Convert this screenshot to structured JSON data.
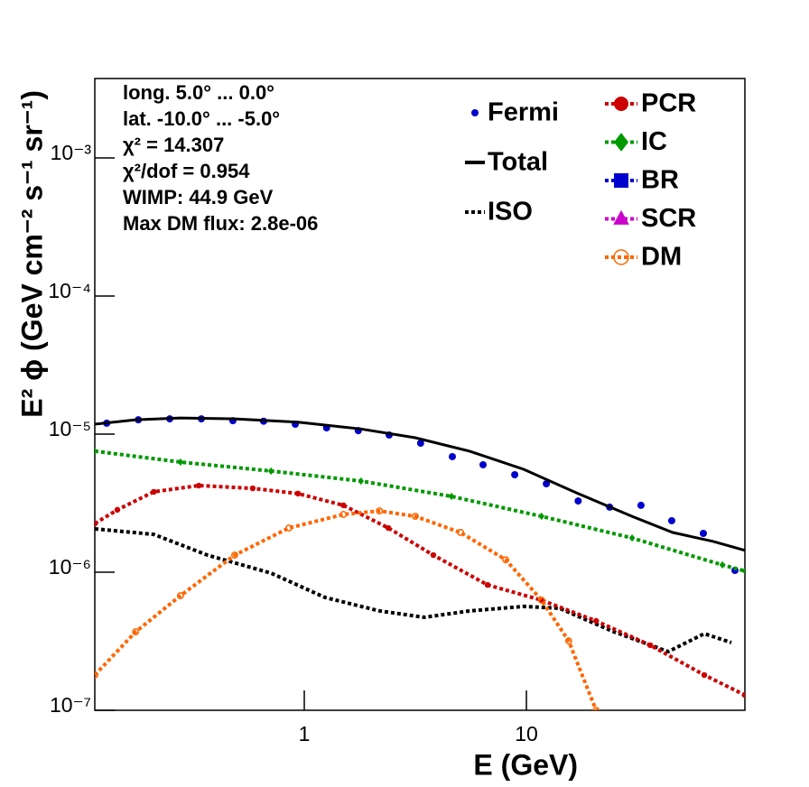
{
  "chart_data": {
    "type": "line",
    "xlabel": "E (GeV)",
    "ylabel": "E² ϕ (GeV cm⁻² s⁻¹ sr⁻¹)",
    "annotations": [
      "long. 5.0° ... 0.0°",
      "lat. -10.0° ... -5.0°",
      "χ² = 14.307",
      "χ²/dof = 0.954",
      "WIMP: 44.9 GeV",
      "Max DM flux: 2.8e-06"
    ],
    "xlog": true,
    "ylog": true,
    "xlim": [
      0.114,
      96.3
    ],
    "ylim": [
      1e-07,
      0.00376
    ],
    "xticks": [
      1,
      10
    ],
    "yticks": [
      {
        "value": 1e-07,
        "label": "10⁻⁷"
      },
      {
        "value": 1e-06,
        "label": "10⁻⁶"
      },
      {
        "value": 1e-05,
        "label": "10⁻⁵"
      },
      {
        "value": 0.0001,
        "label": "10⁻⁴"
      },
      {
        "value": 0.001,
        "label": "10⁻³"
      }
    ],
    "series": [
      {
        "name": "Fermi",
        "color": "#0000cc",
        "style": "points",
        "marker": "circle",
        "x": [
          0.129,
          0.179,
          0.248,
          0.344,
          0.477,
          0.656,
          0.911,
          1.26,
          1.75,
          2.41,
          3.34,
          4.64,
          6.38,
          8.86,
          12.3,
          17.1,
          23.7,
          32.8,
          45.1,
          62.6,
          86.9
        ],
        "values": [
          1.2e-05,
          1.27e-05,
          1.29e-05,
          1.29e-05,
          1.25e-05,
          1.24e-05,
          1.18e-05,
          1.11e-05,
          1.06e-05,
          9.85e-06,
          8.6e-06,
          6.87e-06,
          6e-06,
          5.08e-06,
          4.37e-06,
          3.28e-06,
          2.96e-06,
          3.05e-06,
          2.36e-06,
          1.91e-06,
          1.03e-06
        ]
      },
      {
        "name": "Total",
        "color": "#000000",
        "style": "solid",
        "marker": "none",
        "x": [
          0.114,
          0.174,
          0.277,
          0.486,
          0.937,
          1.8,
          3.16,
          5.55,
          9.72,
          17.1,
          29.9,
          45.6,
          69.4,
          96.3
        ],
        "values": [
          1.18e-05,
          1.27e-05,
          1.31e-05,
          1.29e-05,
          1.22e-05,
          1.09e-05,
          9.42e-06,
          7.52e-06,
          5.56e-06,
          3.71e-06,
          2.54e-06,
          1.94e-06,
          1.67e-06,
          1.44e-06
        ]
      },
      {
        "name": "ISO",
        "color": "#000000",
        "style": "dotted",
        "marker": "none",
        "x": [
          0.114,
          0.21,
          0.367,
          0.708,
          1.24,
          2.18,
          3.47,
          5.55,
          9.72,
          14.1,
          24.8,
          43.5,
          63.2,
          83.7
        ],
        "values": [
          2.06e-06,
          1.88e-06,
          1.33e-06,
          9.85e-07,
          6.56e-07,
          5.24e-07,
          4.71e-07,
          5.24e-07,
          5.65e-07,
          5.48e-07,
          3.7e-07,
          2.66e-07,
          3.59e-07,
          3.09e-07
        ]
      },
      {
        "name": "PCR",
        "color": "#cc0000",
        "style": "dotted",
        "marker": "circle",
        "x": [
          0.114,
          0.144,
          0.21,
          0.335,
          0.586,
          0.937,
          1.5,
          2.39,
          3.81,
          6.69,
          11.7,
          20.6,
          36.1,
          63.2,
          96.3
        ],
        "values": [
          2.25e-06,
          2.83e-06,
          3.82e-06,
          4.24e-06,
          4.05e-06,
          3.71e-06,
          3.05e-06,
          2.09e-06,
          1.33e-06,
          8.09e-07,
          6.27e-07,
          4.44e-07,
          2.96e-07,
          1.8e-07,
          1.29e-07
        ]
      },
      {
        "name": "IC",
        "color": "#009900",
        "style": "dotted",
        "marker": "diamond",
        "x": [
          0.114,
          0.277,
          0.708,
          1.8,
          4.6,
          11.7,
          29.9,
          76.2,
          96.3
        ],
        "values": [
          7.52e-06,
          6.27e-06,
          5.4e-06,
          4.57e-06,
          3.54e-06,
          2.54e-06,
          1.77e-06,
          1.13e-06,
          1.02e-06
        ]
      },
      {
        "name": "BR",
        "color": "#0000cc",
        "style": "dotted",
        "marker": "square",
        "x": [],
        "values": []
      },
      {
        "name": "SCR",
        "color": "#cc00cc",
        "style": "dotted",
        "marker": "triangle",
        "x": [],
        "values": []
      },
      {
        "name": "DM",
        "color": "#ff6600",
        "style": "dotted",
        "marker": "open-circle",
        "x": [
          0.114,
          0.174,
          0.277,
          0.486,
          0.853,
          1.5,
          2.18,
          3.16,
          5.05,
          8.07,
          11.7,
          15.5,
          20.6
        ],
        "values": [
          1.8e-07,
          3.7e-07,
          6.76e-07,
          1.33e-06,
          2.09e-06,
          2.62e-06,
          2.78e-06,
          2.54e-06,
          1.94e-06,
          1.23e-06,
          6.27e-07,
          3.18e-07,
          1e-07
        ]
      }
    ]
  }
}
